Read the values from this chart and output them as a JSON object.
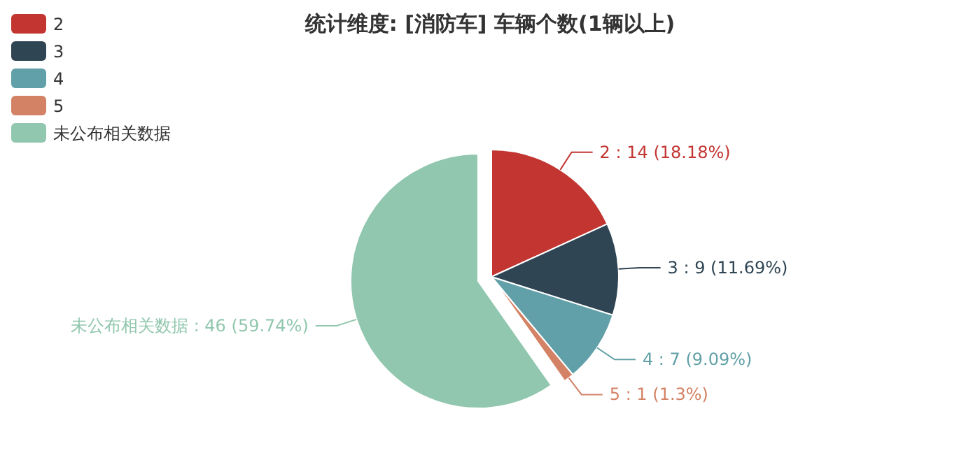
{
  "chart_data": {
    "type": "pie",
    "title": "统计维度: [消防车] 车辆个数(1辆以上)",
    "categories": [
      "2",
      "3",
      "4",
      "5",
      "未公布相关数据"
    ],
    "values": [
      14,
      9,
      7,
      1,
      46
    ],
    "colors": [
      "#c23531",
      "#2f4554",
      "#61a0a8",
      "#d48265",
      "#91c7ae"
    ],
    "value_labels": [
      "2 : 14 (18.18%)",
      "3 : 9 (11.69%)",
      "4 : 7 (9.09%)",
      "5 : 1 (1.3%)",
      "未公布相关数据 : 46 (59.74%)"
    ],
    "legend": "top left"
  }
}
